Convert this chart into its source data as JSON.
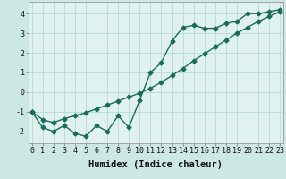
{
  "title": "",
  "xlabel": "Humidex (Indice chaleur)",
  "ylabel": "",
  "bg_color": "#cce8e4",
  "plot_bg_color": "#dff2ef",
  "line_color": "#1a6b5a",
  "grid_color": "#b8d8d4",
  "x_data": [
    0,
    1,
    2,
    3,
    4,
    5,
    6,
    7,
    8,
    9,
    10,
    11,
    12,
    13,
    14,
    15,
    16,
    17,
    18,
    19,
    20,
    21,
    22,
    23
  ],
  "y1_data": [
    -1.0,
    -1.8,
    -2.0,
    -1.7,
    -2.1,
    -2.25,
    -1.7,
    -2.0,
    -1.2,
    -1.8,
    -0.4,
    1.0,
    1.5,
    2.6,
    3.3,
    3.4,
    3.25,
    3.25,
    3.5,
    3.6,
    4.0,
    4.0,
    4.1,
    4.2
  ],
  "y2_data": [
    -1.0,
    -1.4,
    -1.55,
    -1.35,
    -1.2,
    -1.05,
    -0.85,
    -0.65,
    -0.45,
    -0.25,
    -0.05,
    0.2,
    0.5,
    0.85,
    1.2,
    1.6,
    1.95,
    2.3,
    2.65,
    3.0,
    3.3,
    3.6,
    3.85,
    4.1
  ],
  "xlim": [
    -0.3,
    23.3
  ],
  "ylim": [
    -2.6,
    4.6
  ],
  "yticks": [
    -2,
    -1,
    0,
    1,
    2,
    3,
    4
  ],
  "xticks": [
    0,
    1,
    2,
    3,
    4,
    5,
    6,
    7,
    8,
    9,
    10,
    11,
    12,
    13,
    14,
    15,
    16,
    17,
    18,
    19,
    20,
    21,
    22,
    23
  ],
  "marker": "D",
  "markersize": 2.5,
  "linewidth": 1.0,
  "xlabel_fontsize": 7.5,
  "tick_fontsize": 6.0
}
